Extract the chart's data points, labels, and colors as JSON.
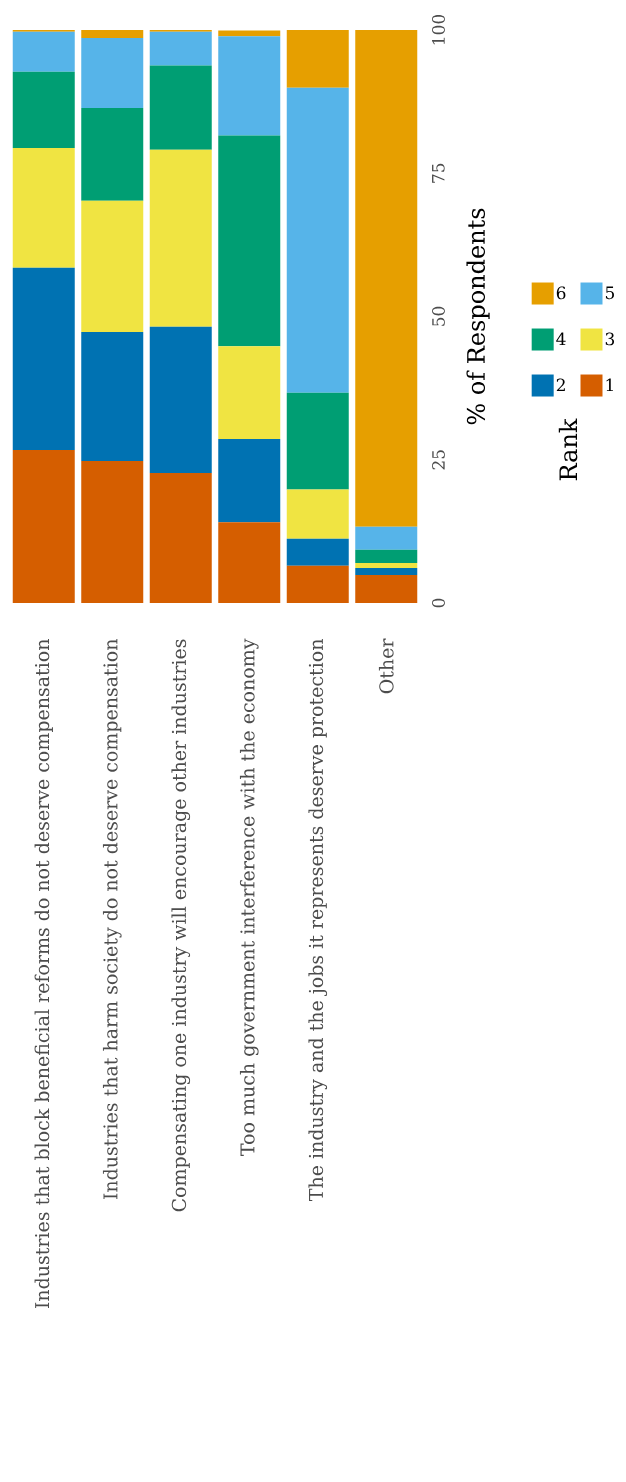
{
  "chart_data": {
    "type": "bar",
    "stacked": true,
    "ylabel": "% of Respondents",
    "legend_title": "Rank",
    "legend": "right",
    "categories": [
      "Industries that block beneficial reforms do not deserve compensation",
      "Industries that harm society do not deserve compensation",
      "Compensating one industry will encourage other industries",
      "Too much government interference with the economy",
      "The industry and the jobs it represents deserve protection",
      "Other"
    ],
    "ylim": [
      0,
      100
    ],
    "yticks": [
      0,
      25,
      50,
      75,
      100
    ],
    "series": [
      {
        "name": "1",
        "color": "#d55e00",
        "values": [
          26.7,
          24.8,
          22.7,
          14.1,
          6.5,
          4.9
        ]
      },
      {
        "name": "2",
        "color": "#0072b2",
        "values": [
          31.8,
          22.5,
          25.5,
          14.5,
          4.7,
          1.2
        ]
      },
      {
        "name": "3",
        "color": "#f0e442",
        "values": [
          20.9,
          22.9,
          30.9,
          16.2,
          8.6,
          0.9
        ]
      },
      {
        "name": "4",
        "color": "#009e73",
        "values": [
          13.3,
          16.2,
          14.7,
          36.8,
          16.9,
          2.3
        ]
      },
      {
        "name": "5",
        "color": "#56b4e9",
        "values": [
          7.0,
          12.2,
          5.9,
          17.3,
          53.2,
          4.0
        ]
      },
      {
        "name": "6",
        "color": "#e69f00",
        "values": [
          0.3,
          1.4,
          0.3,
          1.0,
          10.1,
          86.7
        ]
      }
    ]
  }
}
